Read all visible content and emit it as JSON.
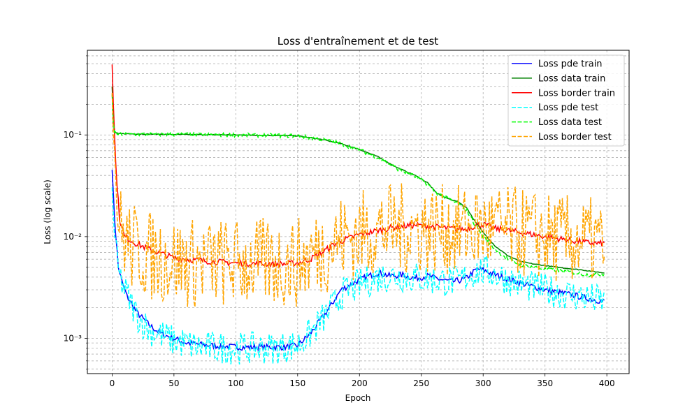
{
  "chart_data": {
    "type": "line",
    "title": "Loss d'entraînement et de test",
    "xlabel": "Epoch",
    "ylabel": "Loss (log scale)",
    "yscale": "log",
    "xlim": [
      -20,
      418
    ],
    "ylim": [
      0.00045,
      0.68
    ],
    "xticks": [
      0,
      50,
      100,
      150,
      200,
      250,
      300,
      350,
      400
    ],
    "yticks": [
      {
        "value": 0.001,
        "label": "10⁻³"
      },
      {
        "value": 0.01,
        "label": "10⁻²"
      },
      {
        "value": 0.1,
        "label": "10⁻¹"
      }
    ],
    "grid": true,
    "legend_position": "top-right",
    "series": [
      {
        "name": "Loss pde train",
        "color": "#0000ff",
        "style": "solid",
        "noise": 0.03,
        "points": [
          [
            0,
            0.046
          ],
          [
            2,
            0.015
          ],
          [
            5,
            0.005
          ],
          [
            8,
            0.0036
          ],
          [
            12,
            0.0026
          ],
          [
            20,
            0.0018
          ],
          [
            30,
            0.00135
          ],
          [
            40,
            0.0011
          ],
          [
            50,
            0.001
          ],
          [
            60,
            0.0009
          ],
          [
            80,
            0.00085
          ],
          [
            100,
            0.00082
          ],
          [
            120,
            0.00082
          ],
          [
            140,
            0.00082
          ],
          [
            150,
            0.00085
          ],
          [
            160,
            0.0011
          ],
          [
            170,
            0.0016
          ],
          [
            178,
            0.0022
          ],
          [
            185,
            0.003
          ],
          [
            195,
            0.0035
          ],
          [
            205,
            0.004
          ],
          [
            215,
            0.0044
          ],
          [
            225,
            0.0041
          ],
          [
            235,
            0.0042
          ],
          [
            245,
            0.0039
          ],
          [
            255,
            0.0041
          ],
          [
            265,
            0.0038
          ],
          [
            275,
            0.0036
          ],
          [
            285,
            0.0038
          ],
          [
            295,
            0.0048
          ],
          [
            300,
            0.0047
          ],
          [
            310,
            0.0042
          ],
          [
            330,
            0.0035
          ],
          [
            350,
            0.003
          ],
          [
            370,
            0.0027
          ],
          [
            390,
            0.0024
          ],
          [
            398,
            0.0023
          ]
        ]
      },
      {
        "name": "Loss data train",
        "color": "#008000",
        "style": "solid",
        "noise": 0.004,
        "points": [
          [
            0,
            0.3
          ],
          [
            1,
            0.14
          ],
          [
            2,
            0.106
          ],
          [
            5,
            0.103
          ],
          [
            50,
            0.101
          ],
          [
            100,
            0.1
          ],
          [
            150,
            0.098
          ],
          [
            170,
            0.09
          ],
          [
            185,
            0.082
          ],
          [
            200,
            0.072
          ],
          [
            215,
            0.061
          ],
          [
            230,
            0.048
          ],
          [
            245,
            0.04
          ],
          [
            255,
            0.034
          ],
          [
            262,
            0.027
          ],
          [
            270,
            0.024
          ],
          [
            280,
            0.022
          ],
          [
            287,
            0.019
          ],
          [
            292,
            0.015
          ],
          [
            300,
            0.011
          ],
          [
            310,
            0.008
          ],
          [
            320,
            0.0065
          ],
          [
            330,
            0.0057
          ],
          [
            340,
            0.0054
          ],
          [
            360,
            0.005
          ],
          [
            380,
            0.0047
          ],
          [
            398,
            0.0044
          ]
        ]
      },
      {
        "name": "Loss border train",
        "color": "#ff0000",
        "style": "solid",
        "noise": 0.03,
        "points": [
          [
            0,
            0.5
          ],
          [
            1,
            0.2
          ],
          [
            3,
            0.05
          ],
          [
            6,
            0.015
          ],
          [
            10,
            0.01
          ],
          [
            20,
            0.0085
          ],
          [
            30,
            0.0075
          ],
          [
            40,
            0.0068
          ],
          [
            50,
            0.0062
          ],
          [
            60,
            0.006
          ],
          [
            80,
            0.0057
          ],
          [
            100,
            0.0055
          ],
          [
            120,
            0.0054
          ],
          [
            140,
            0.0054
          ],
          [
            150,
            0.0055
          ],
          [
            160,
            0.006
          ],
          [
            170,
            0.007
          ],
          [
            180,
            0.0085
          ],
          [
            190,
            0.0095
          ],
          [
            200,
            0.0105
          ],
          [
            215,
            0.0115
          ],
          [
            230,
            0.0125
          ],
          [
            245,
            0.013
          ],
          [
            260,
            0.0125
          ],
          [
            275,
            0.012
          ],
          [
            285,
            0.0118
          ],
          [
            295,
            0.013
          ],
          [
            300,
            0.0132
          ],
          [
            310,
            0.012
          ],
          [
            330,
            0.011
          ],
          [
            350,
            0.01
          ],
          [
            370,
            0.0092
          ],
          [
            385,
            0.0087
          ],
          [
            398,
            0.0085
          ]
        ]
      },
      {
        "name": "Loss pde test",
        "color": "#00ffff",
        "style": "dashed",
        "noise": 0.16,
        "points": [
          [
            0,
            0.03
          ],
          [
            2,
            0.01
          ],
          [
            5,
            0.0045
          ],
          [
            10,
            0.003
          ],
          [
            20,
            0.0017
          ],
          [
            30,
            0.0012
          ],
          [
            50,
            0.00095
          ],
          [
            70,
            0.00082
          ],
          [
            100,
            0.0008
          ],
          [
            130,
            0.0008
          ],
          [
            150,
            0.00085
          ],
          [
            160,
            0.0011
          ],
          [
            175,
            0.0018
          ],
          [
            185,
            0.0027
          ],
          [
            200,
            0.0034
          ],
          [
            215,
            0.004
          ],
          [
            230,
            0.0041
          ],
          [
            250,
            0.0039
          ],
          [
            265,
            0.0037
          ],
          [
            280,
            0.0036
          ],
          [
            295,
            0.0046
          ],
          [
            305,
            0.0045
          ],
          [
            330,
            0.0034
          ],
          [
            350,
            0.003
          ],
          [
            370,
            0.0027
          ],
          [
            398,
            0.0023
          ]
        ]
      },
      {
        "name": "Loss data test",
        "color": "#00ff00",
        "style": "dashed",
        "noise": 0.02,
        "points": [
          [
            0,
            0.25
          ],
          [
            1,
            0.13
          ],
          [
            2,
            0.105
          ],
          [
            5,
            0.102
          ],
          [
            50,
            0.101
          ],
          [
            100,
            0.1
          ],
          [
            150,
            0.098
          ],
          [
            170,
            0.09
          ],
          [
            185,
            0.082
          ],
          [
            200,
            0.071
          ],
          [
            215,
            0.06
          ],
          [
            230,
            0.047
          ],
          [
            245,
            0.039
          ],
          [
            255,
            0.033
          ],
          [
            262,
            0.027
          ],
          [
            270,
            0.024
          ],
          [
            280,
            0.021
          ],
          [
            287,
            0.018
          ],
          [
            292,
            0.014
          ],
          [
            300,
            0.01
          ],
          [
            310,
            0.0075
          ],
          [
            320,
            0.006
          ],
          [
            330,
            0.0053
          ],
          [
            350,
            0.0048
          ],
          [
            370,
            0.0045
          ],
          [
            385,
            0.0042
          ],
          [
            398,
            0.0043
          ]
        ]
      },
      {
        "name": "Loss border test",
        "color": "#ffa500",
        "style": "dashed",
        "noise": 0.45,
        "points": [
          [
            0,
            0.3
          ],
          [
            1,
            0.12
          ],
          [
            3,
            0.04
          ],
          [
            6,
            0.012
          ],
          [
            15,
            0.008
          ],
          [
            30,
            0.0065
          ],
          [
            60,
            0.0055
          ],
          [
            100,
            0.0055
          ],
          [
            150,
            0.0055
          ],
          [
            170,
            0.0075
          ],
          [
            185,
            0.0095
          ],
          [
            200,
            0.0105
          ],
          [
            220,
            0.012
          ],
          [
            250,
            0.012
          ],
          [
            280,
            0.0115
          ],
          [
            300,
            0.012
          ],
          [
            330,
            0.011
          ],
          [
            360,
            0.0095
          ],
          [
            398,
            0.0085
          ]
        ]
      }
    ]
  }
}
